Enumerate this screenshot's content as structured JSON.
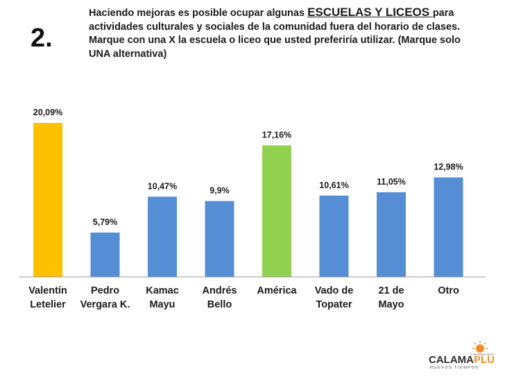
{
  "header": {
    "question_number": "2.",
    "question_part1": "Haciendo mejoras es posible ocupar algunas ",
    "question_highlight": "ESCUELAS Y LICEOS ",
    "question_part2": "para actividades culturales y sociales de la comunidad fuera del horario de clases. Marque con una X la escuela o liceo que usted preferiría utilizar. (Marque solo UNA alternativa)"
  },
  "chart_data": {
    "type": "bar",
    "categories": [
      [
        "Valentín",
        "Letelier"
      ],
      [
        "Pedro",
        "Vergara K."
      ],
      [
        "Kamac",
        "Mayu"
      ],
      [
        "Andrés",
        "Bello"
      ],
      [
        "América"
      ],
      [
        "Vado de",
        "Topater"
      ],
      [
        "21 de",
        "Mayo"
      ],
      [
        "Otro"
      ]
    ],
    "values": [
      20.09,
      5.79,
      10.47,
      9.9,
      17.16,
      10.61,
      11.05,
      12.98
    ],
    "data_labels": [
      "20,09%",
      "5,79%",
      "10,47%",
      "9,9%",
      "17,16%",
      "10,61%",
      "11,05%",
      "12,98%"
    ],
    "colors": [
      "#ffc000",
      "#558ed5",
      "#558ed5",
      "#558ed5",
      "#92d050",
      "#558ed5",
      "#558ed5",
      "#558ed5"
    ],
    "ylim": [
      0,
      20.09
    ],
    "grid": false,
    "legend": "none"
  },
  "logo": {
    "main_text": "CALAMA",
    "accent_text": "PLUS",
    "tagline": "NUEVOS TIEMPOS",
    "small_text": "PLAN URBANO SUSTENTABLE",
    "accent_color": "#f28c28",
    "main_color": "#2b2b2b"
  }
}
